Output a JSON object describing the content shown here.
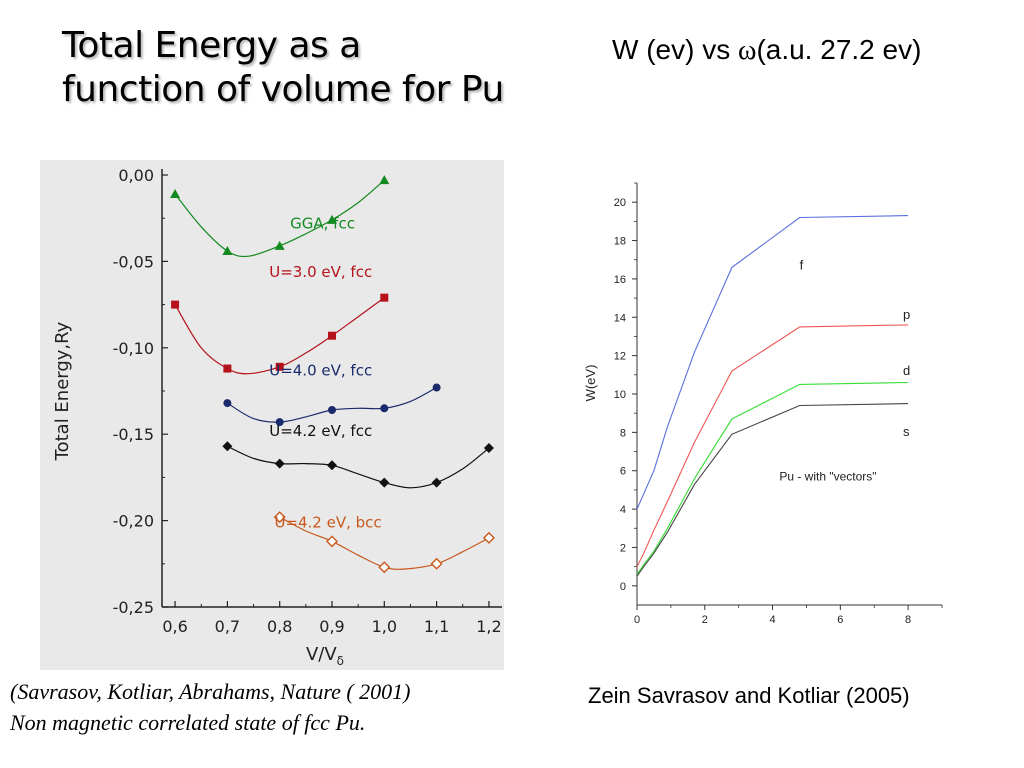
{
  "slide": {
    "title_line1": "Total Energy as a",
    "title_line2": "function of volume for Pu",
    "right_title_prefix": "W (ev) vs ",
    "right_title_omega": "ω",
    "right_title_suffix": "(a.u. 27.2 ev)",
    "citation_line1": "(Savrasov, Kotliar, Abrahams,  Nature ( 2001)",
    "citation_line2": "Non magnetic correlated state of fcc Pu.",
    "credit": "Zein Savrasov and Kotliar (2005)"
  },
  "chart_data": [
    {
      "type": "scatter",
      "xlabel": "V/V",
      "xlabel_sub": "δ",
      "ylabel": "Total Energy,Ry",
      "xlim": [
        0.6,
        1.2
      ],
      "ylim": [
        -0.25,
        0.0
      ],
      "xticks": [
        "0,6",
        "0,7",
        "0,8",
        "0,9",
        "1,0",
        "1,1",
        "1,2"
      ],
      "yticks": [
        "0,00",
        "-0,05",
        "-0,10",
        "-0,15",
        "-0,20",
        "-0,25"
      ],
      "grid": false,
      "series": [
        {
          "name": "GGA, fcc",
          "color": "#138a1f",
          "marker": "triangle",
          "x": [
            0.6,
            0.7,
            0.8,
            0.9,
            1.0
          ],
          "y": [
            -0.011,
            -0.044,
            -0.041,
            -0.026,
            -0.003
          ],
          "fit_x": [
            0.6,
            0.65,
            0.7,
            0.74,
            0.8,
            0.85,
            0.9,
            0.95,
            1.0
          ],
          "fit_y": [
            -0.011,
            -0.03,
            -0.044,
            -0.047,
            -0.041,
            -0.034,
            -0.026,
            -0.016,
            -0.003
          ]
        },
        {
          "name": "U=3.0 eV, fcc",
          "color": "#b5121b",
          "marker": "square",
          "x": [
            0.6,
            0.7,
            0.8,
            0.9,
            1.0
          ],
          "y": [
            -0.075,
            -0.112,
            -0.111,
            -0.093,
            -0.071
          ],
          "fit_x": [
            0.6,
            0.65,
            0.7,
            0.74,
            0.8,
            0.85,
            0.9,
            0.95,
            1.0
          ],
          "fit_y": [
            -0.075,
            -0.1,
            -0.112,
            -0.115,
            -0.111,
            -0.103,
            -0.093,
            -0.082,
            -0.071
          ]
        },
        {
          "name": "U=4.0 eV, fcc",
          "color": "#1a2a6c",
          "marker": "circle",
          "x": [
            0.7,
            0.8,
            0.9,
            1.0,
            1.1
          ],
          "y": [
            -0.132,
            -0.143,
            -0.136,
            -0.135,
            -0.123
          ],
          "fit_x": [
            0.7,
            0.75,
            0.8,
            0.85,
            0.9,
            0.95,
            1.0,
            1.05,
            1.1
          ],
          "fit_y": [
            -0.132,
            -0.141,
            -0.143,
            -0.14,
            -0.136,
            -0.135,
            -0.135,
            -0.131,
            -0.123
          ]
        },
        {
          "name": "U=4.2 eV, fcc",
          "color": "#111111",
          "marker": "diamond",
          "x": [
            0.7,
            0.8,
            0.9,
            1.0,
            1.1,
            1.2
          ],
          "y": [
            -0.157,
            -0.167,
            -0.168,
            -0.178,
            -0.178,
            -0.158
          ],
          "fit_x": [
            0.7,
            0.75,
            0.8,
            0.85,
            0.9,
            0.95,
            1.0,
            1.05,
            1.1,
            1.15,
            1.2
          ],
          "fit_y": [
            -0.157,
            -0.164,
            -0.167,
            -0.167,
            -0.168,
            -0.173,
            -0.178,
            -0.181,
            -0.178,
            -0.17,
            -0.158
          ]
        },
        {
          "name": "U=4.2 eV, bcc",
          "color": "#c8581c",
          "marker": "open-diamond",
          "x": [
            0.8,
            0.9,
            1.0,
            1.1,
            1.2
          ],
          "y": [
            -0.198,
            -0.212,
            -0.227,
            -0.225,
            -0.21
          ],
          "fit_x": [
            0.8,
            0.85,
            0.9,
            0.95,
            1.0,
            1.04,
            1.1,
            1.15,
            1.2
          ],
          "fit_y": [
            -0.198,
            -0.206,
            -0.212,
            -0.22,
            -0.227,
            -0.228,
            -0.225,
            -0.218,
            -0.21
          ]
        }
      ]
    },
    {
      "type": "line",
      "xlabel": "",
      "ylabel": "W(eV)",
      "xlim": [
        0,
        9
      ],
      "ylim": [
        -1,
        21
      ],
      "xticks": [
        0,
        2,
        4,
        6,
        8
      ],
      "yticks": [
        0,
        2,
        4,
        6,
        8,
        10,
        12,
        14,
        16,
        18,
        20
      ],
      "grid": false,
      "annotation": "Pu - with \"vectors\"",
      "series": [
        {
          "name": "f",
          "color": "#5a6fe0",
          "x": [
            0,
            0.2,
            0.5,
            0.9,
            1.7,
            2.8,
            4.8,
            8
          ],
          "y": [
            4.0,
            4.8,
            6.0,
            8.3,
            12.2,
            16.6,
            19.2,
            19.3
          ]
        },
        {
          "name": "p",
          "color": "#ee5555",
          "x": [
            0,
            0.2,
            0.5,
            0.9,
            1.7,
            2.8,
            4.8,
            8
          ],
          "y": [
            1.0,
            1.7,
            2.9,
            4.4,
            7.5,
            11.2,
            13.5,
            13.6
          ]
        },
        {
          "name": "d",
          "color": "#33dd33",
          "x": [
            0,
            0.2,
            0.5,
            0.9,
            1.7,
            2.8,
            4.8,
            8
          ],
          "y": [
            0.6,
            1.1,
            1.8,
            3.0,
            5.6,
            8.7,
            10.5,
            10.6
          ]
        },
        {
          "name": "s",
          "color": "#444444",
          "x": [
            0,
            0.2,
            0.5,
            0.9,
            1.7,
            2.8,
            4.8,
            8
          ],
          "y": [
            0.5,
            1.0,
            1.7,
            2.8,
            5.3,
            7.9,
            9.4,
            9.5
          ]
        }
      ]
    }
  ]
}
